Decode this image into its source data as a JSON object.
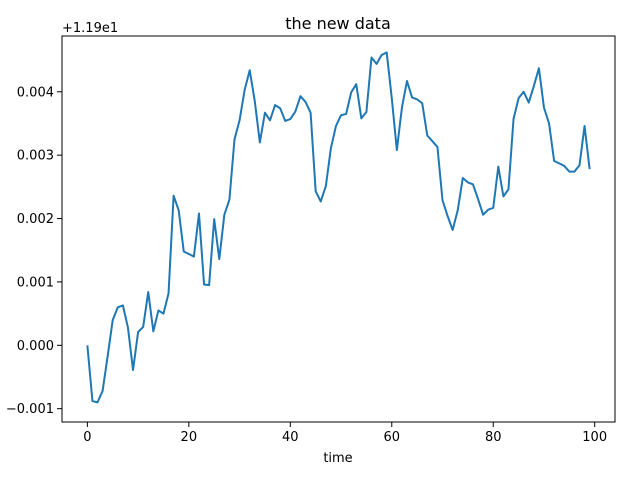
{
  "chart_data": {
    "type": "line",
    "title": "the new data",
    "xlabel": "time",
    "ylabel": "",
    "y_offset_label": "+1.19e1",
    "xlim": [
      -5,
      104
    ],
    "ylim": [
      -0.00121,
      0.00488
    ],
    "xticks": [
      0,
      20,
      40,
      60,
      80,
      100
    ],
    "yticks": [
      -0.001,
      0.0,
      0.001,
      0.002,
      0.003,
      0.004
    ],
    "ytick_labels": [
      "−0.001",
      "0.000",
      "0.001",
      "0.002",
      "0.003",
      "0.004"
    ],
    "grid": false,
    "line_color": "#1f77b4",
    "series": [
      {
        "x": [
          0,
          1,
          2,
          3,
          4,
          5,
          6,
          7,
          8,
          9,
          10,
          11,
          12,
          13,
          14,
          15,
          16,
          17,
          18,
          19,
          20,
          21,
          22,
          23,
          24,
          25,
          26,
          27,
          28,
          29,
          30,
          31,
          32,
          33,
          34,
          35,
          36,
          37,
          38,
          39,
          40,
          41,
          42,
          43,
          44,
          45,
          46,
          47,
          48,
          49,
          50,
          51,
          52,
          53,
          54,
          55,
          56,
          57,
          58,
          59,
          60,
          61,
          62,
          63,
          64,
          65,
          66,
          67,
          68,
          69,
          70,
          71,
          72,
          73,
          74,
          75,
          76,
          77,
          78,
          79,
          80,
          81,
          82,
          83,
          84,
          85,
          86,
          87,
          88,
          89,
          90,
          91,
          92,
          93,
          94,
          95,
          96,
          97,
          98,
          99
        ],
        "values": [
          0.0,
          -0.00088,
          -0.0009,
          -0.00072,
          -0.00017,
          0.0004,
          0.0006,
          0.00063,
          0.00028,
          -0.00039,
          0.00021,
          0.00029,
          0.00084,
          0.00022,
          0.00055,
          0.0005,
          0.00082,
          0.00236,
          0.00213,
          0.00148,
          0.00144,
          0.0014,
          0.00208,
          0.00096,
          0.00095,
          0.00199,
          0.00136,
          0.00206,
          0.0023,
          0.00325,
          0.00355,
          0.00403,
          0.00434,
          0.00385,
          0.0032,
          0.00367,
          0.00355,
          0.00379,
          0.00374,
          0.00354,
          0.00357,
          0.00369,
          0.00393,
          0.00384,
          0.00367,
          0.00243,
          0.00227,
          0.00251,
          0.00311,
          0.00346,
          0.00363,
          0.00365,
          0.00399,
          0.00412,
          0.00358,
          0.00368,
          0.00454,
          0.00444,
          0.00458,
          0.00462,
          0.0039,
          0.00308,
          0.00375,
          0.00417,
          0.00391,
          0.00388,
          0.00382,
          0.00331,
          0.00322,
          0.00313,
          0.00229,
          0.00204,
          0.00182,
          0.00213,
          0.00264,
          0.00257,
          0.00254,
          0.00231,
          0.00206,
          0.00214,
          0.00217,
          0.00282,
          0.00235,
          0.00246,
          0.00357,
          0.0039,
          0.004,
          0.00383,
          0.00409,
          0.00437,
          0.00375,
          0.0035,
          0.00291,
          0.00287,
          0.00283,
          0.00274,
          0.00274,
          0.00284,
          0.00346,
          0.00278
        ]
      }
    ]
  }
}
